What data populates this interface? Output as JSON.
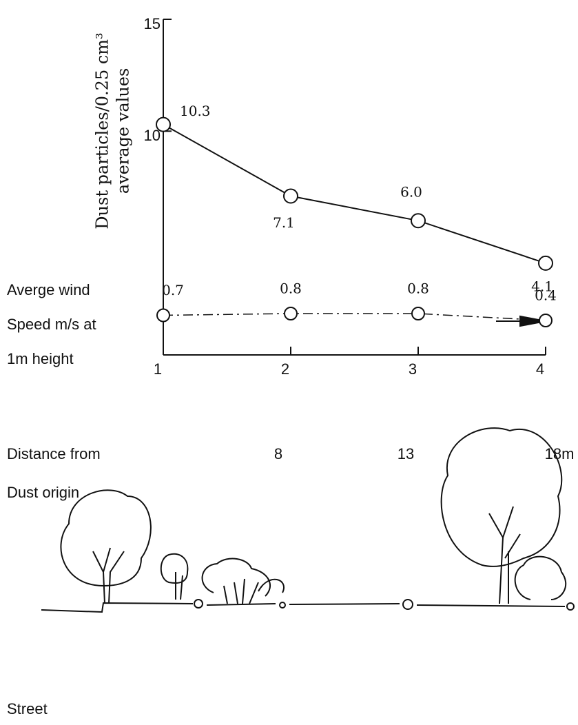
{
  "chart_data": {
    "type": "line",
    "y_label": [
      "Dust particles/0.25 cm³",
      "average values"
    ],
    "x": [
      1,
      2,
      3,
      4
    ],
    "xlim": [
      1,
      4
    ],
    "xticks": [
      1,
      2,
      3,
      4
    ],
    "ylim": [
      0,
      15
    ],
    "yticks": [
      10,
      15
    ],
    "values": [
      10.3,
      7.1,
      6.0,
      4.1
    ],
    "value_labels": [
      "10.3",
      "7.1",
      "6.0",
      "4.1"
    ],
    "color": "#111111",
    "wind": {
      "label": [
        "Averge wind",
        "Speed m/s at",
        "1m height"
      ],
      "values": [
        0.7,
        0.8,
        0.8,
        0.4
      ]
    },
    "distance": {
      "label": [
        "Distance from",
        "Dust origin"
      ],
      "values": [
        8,
        13,
        {
          "value": 18,
          "label": "18m"
        }
      ]
    },
    "street_label": "Street"
  }
}
